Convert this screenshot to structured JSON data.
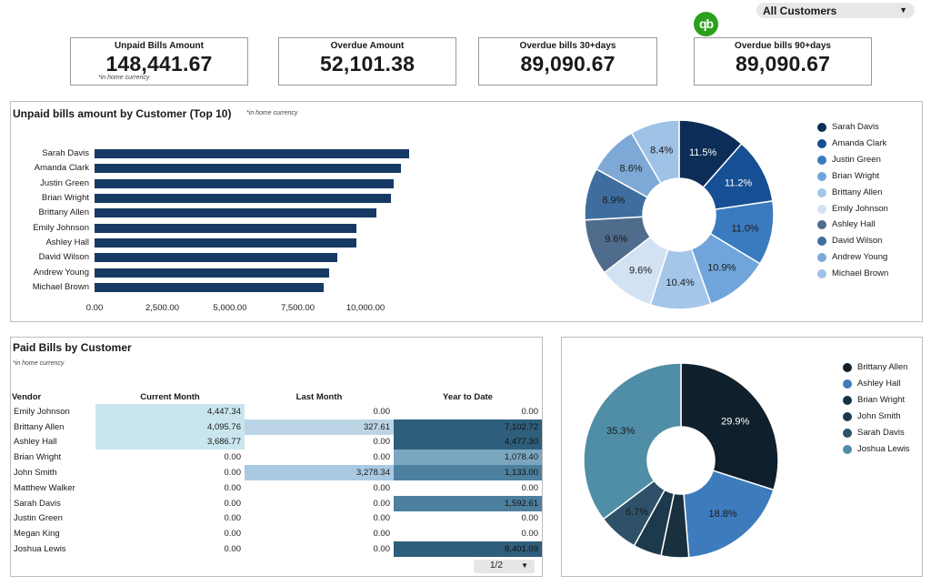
{
  "filter": {
    "label": "All Customers"
  },
  "logo": {
    "text": "qb"
  },
  "kpis": [
    {
      "title": "Unpaid Bills Amount",
      "value": "148,441.67",
      "note": "*in home currency"
    },
    {
      "title": "Overdue Amount",
      "value": "52,101.38"
    },
    {
      "title": "Overdue bills 30+days",
      "value": "89,090.67"
    },
    {
      "title": "Overdue bills 90+days",
      "value": "89,090.67"
    }
  ],
  "unpaid": {
    "title": "Unpaid bills amount by Customer (Top 10)",
    "note": "*in home currency"
  },
  "paid": {
    "title": "Paid Bills by Customer",
    "note": "*in home currency",
    "columns": [
      "Vendor",
      "Current Month",
      "Last Month",
      "Year to Date"
    ],
    "rows": [
      [
        "Emily Johnson",
        "4,447.34",
        "0.00",
        "0.00"
      ],
      [
        "Brittany Allen",
        "4,095.76",
        "327.61",
        "7,102.72"
      ],
      [
        "Ashley Hall",
        "3,686.77",
        "0.00",
        "4,477.30"
      ],
      [
        "Brian Wright",
        "0.00",
        "0.00",
        "1,078.40"
      ],
      [
        "John Smith",
        "0.00",
        "3,278.34",
        "1,133.00"
      ],
      [
        "Matthew Walker",
        "0.00",
        "0.00",
        "0.00"
      ],
      [
        "Sarah Davis",
        "0.00",
        "0.00",
        "1,592.61"
      ],
      [
        "Justin Green",
        "0.00",
        "0.00",
        "0.00"
      ],
      [
        "Megan King",
        "0.00",
        "0.00",
        "0.00"
      ],
      [
        "Joshua Lewis",
        "0.00",
        "0.00",
        "8,401.09"
      ]
    ],
    "pager": "1/2",
    "cell_colors": {
      "current": "#c9e6ee",
      "last_light": "#bcd5e6",
      "last_mid": "#a9c9e2",
      "ytd_dark": "#2e5e7c",
      "ytd_mid": "#4d7f9e",
      "ytd_light": "#7aa6c0"
    }
  },
  "chart_data": [
    {
      "type": "bar",
      "orientation": "horizontal",
      "title": "Unpaid bills amount by Customer (Top 10)",
      "categories": [
        "Sarah Davis",
        "Amanda Clark",
        "Justin Green",
        "Brian Wright",
        "Brittany Allen",
        "Emily Johnson",
        "Ashley Hall",
        "David Wilson",
        "Andrew Young",
        "Michael Brown"
      ],
      "values": [
        11600,
        11300,
        11050,
        10950,
        10400,
        9650,
        9650,
        8950,
        8650,
        8450
      ],
      "xlim": [
        0,
        12500
      ],
      "xticks": [
        "0.00",
        "2,500.00",
        "5,000.00",
        "7,500.00",
        "10,000.00"
      ],
      "xtick_values": [
        0,
        2500,
        5000,
        7500,
        10000
      ],
      "color": "#163a63"
    },
    {
      "type": "pie",
      "variant": "donut",
      "labels": [
        "Sarah Davis",
        "Amanda Clark",
        "Justin Green",
        "Brian Wright",
        "Brittany Allen",
        "Emily Johnson",
        "Ashley Hall",
        "David Wilson",
        "Andrew Young",
        "Michael Brown"
      ],
      "values": [
        11.5,
        11.2,
        11.0,
        10.9,
        10.4,
        9.6,
        9.6,
        8.9,
        8.6,
        8.4
      ],
      "value_labels": [
        "11.5%",
        "11.2%",
        "11.0%",
        "10.9%",
        "10.4%",
        "9.6%",
        "9.6%",
        "8.9%",
        "8.6%",
        "8.4%"
      ],
      "colors": [
        "#0c2d57",
        "#164f93",
        "#3a7bbf",
        "#6fa5da",
        "#a4c6e9",
        "#d3e2f2",
        "#4f6c8c",
        "#3f6e9e",
        "#7ea9d6",
        "#9fc2e7"
      ],
      "label_colors": [
        "#ffffff",
        "#ffffff",
        "#1a1a1a",
        "#1a1a1a",
        "#1a1a1a",
        "#1a1a1a",
        "#1a1a1a",
        "#1a1a1a",
        "#1a1a1a",
        "#1a1a1a"
      ],
      "legend_position": "right"
    },
    {
      "type": "pie",
      "variant": "donut",
      "labels": [
        "Brittany Allen",
        "Ashley Hall",
        "Brian Wright",
        "John Smith",
        "Sarah Davis",
        "Joshua Lewis"
      ],
      "values": [
        29.9,
        18.8,
        4.6,
        4.7,
        6.7,
        35.3
      ],
      "value_labels": [
        "29.9%",
        "18.8%",
        "",
        "",
        "6.7%",
        "35.3%"
      ],
      "colors": [
        "#0f202c",
        "#3d7bbd",
        "#19303f",
        "#1d3a4c",
        "#2e5068",
        "#4f8ea6"
      ],
      "label_colors": [
        "#ffffff",
        "#1a1a1a",
        "#ffffff",
        "#ffffff",
        "#1a1a1a",
        "#1a1a1a"
      ],
      "legend_position": "right"
    }
  ]
}
